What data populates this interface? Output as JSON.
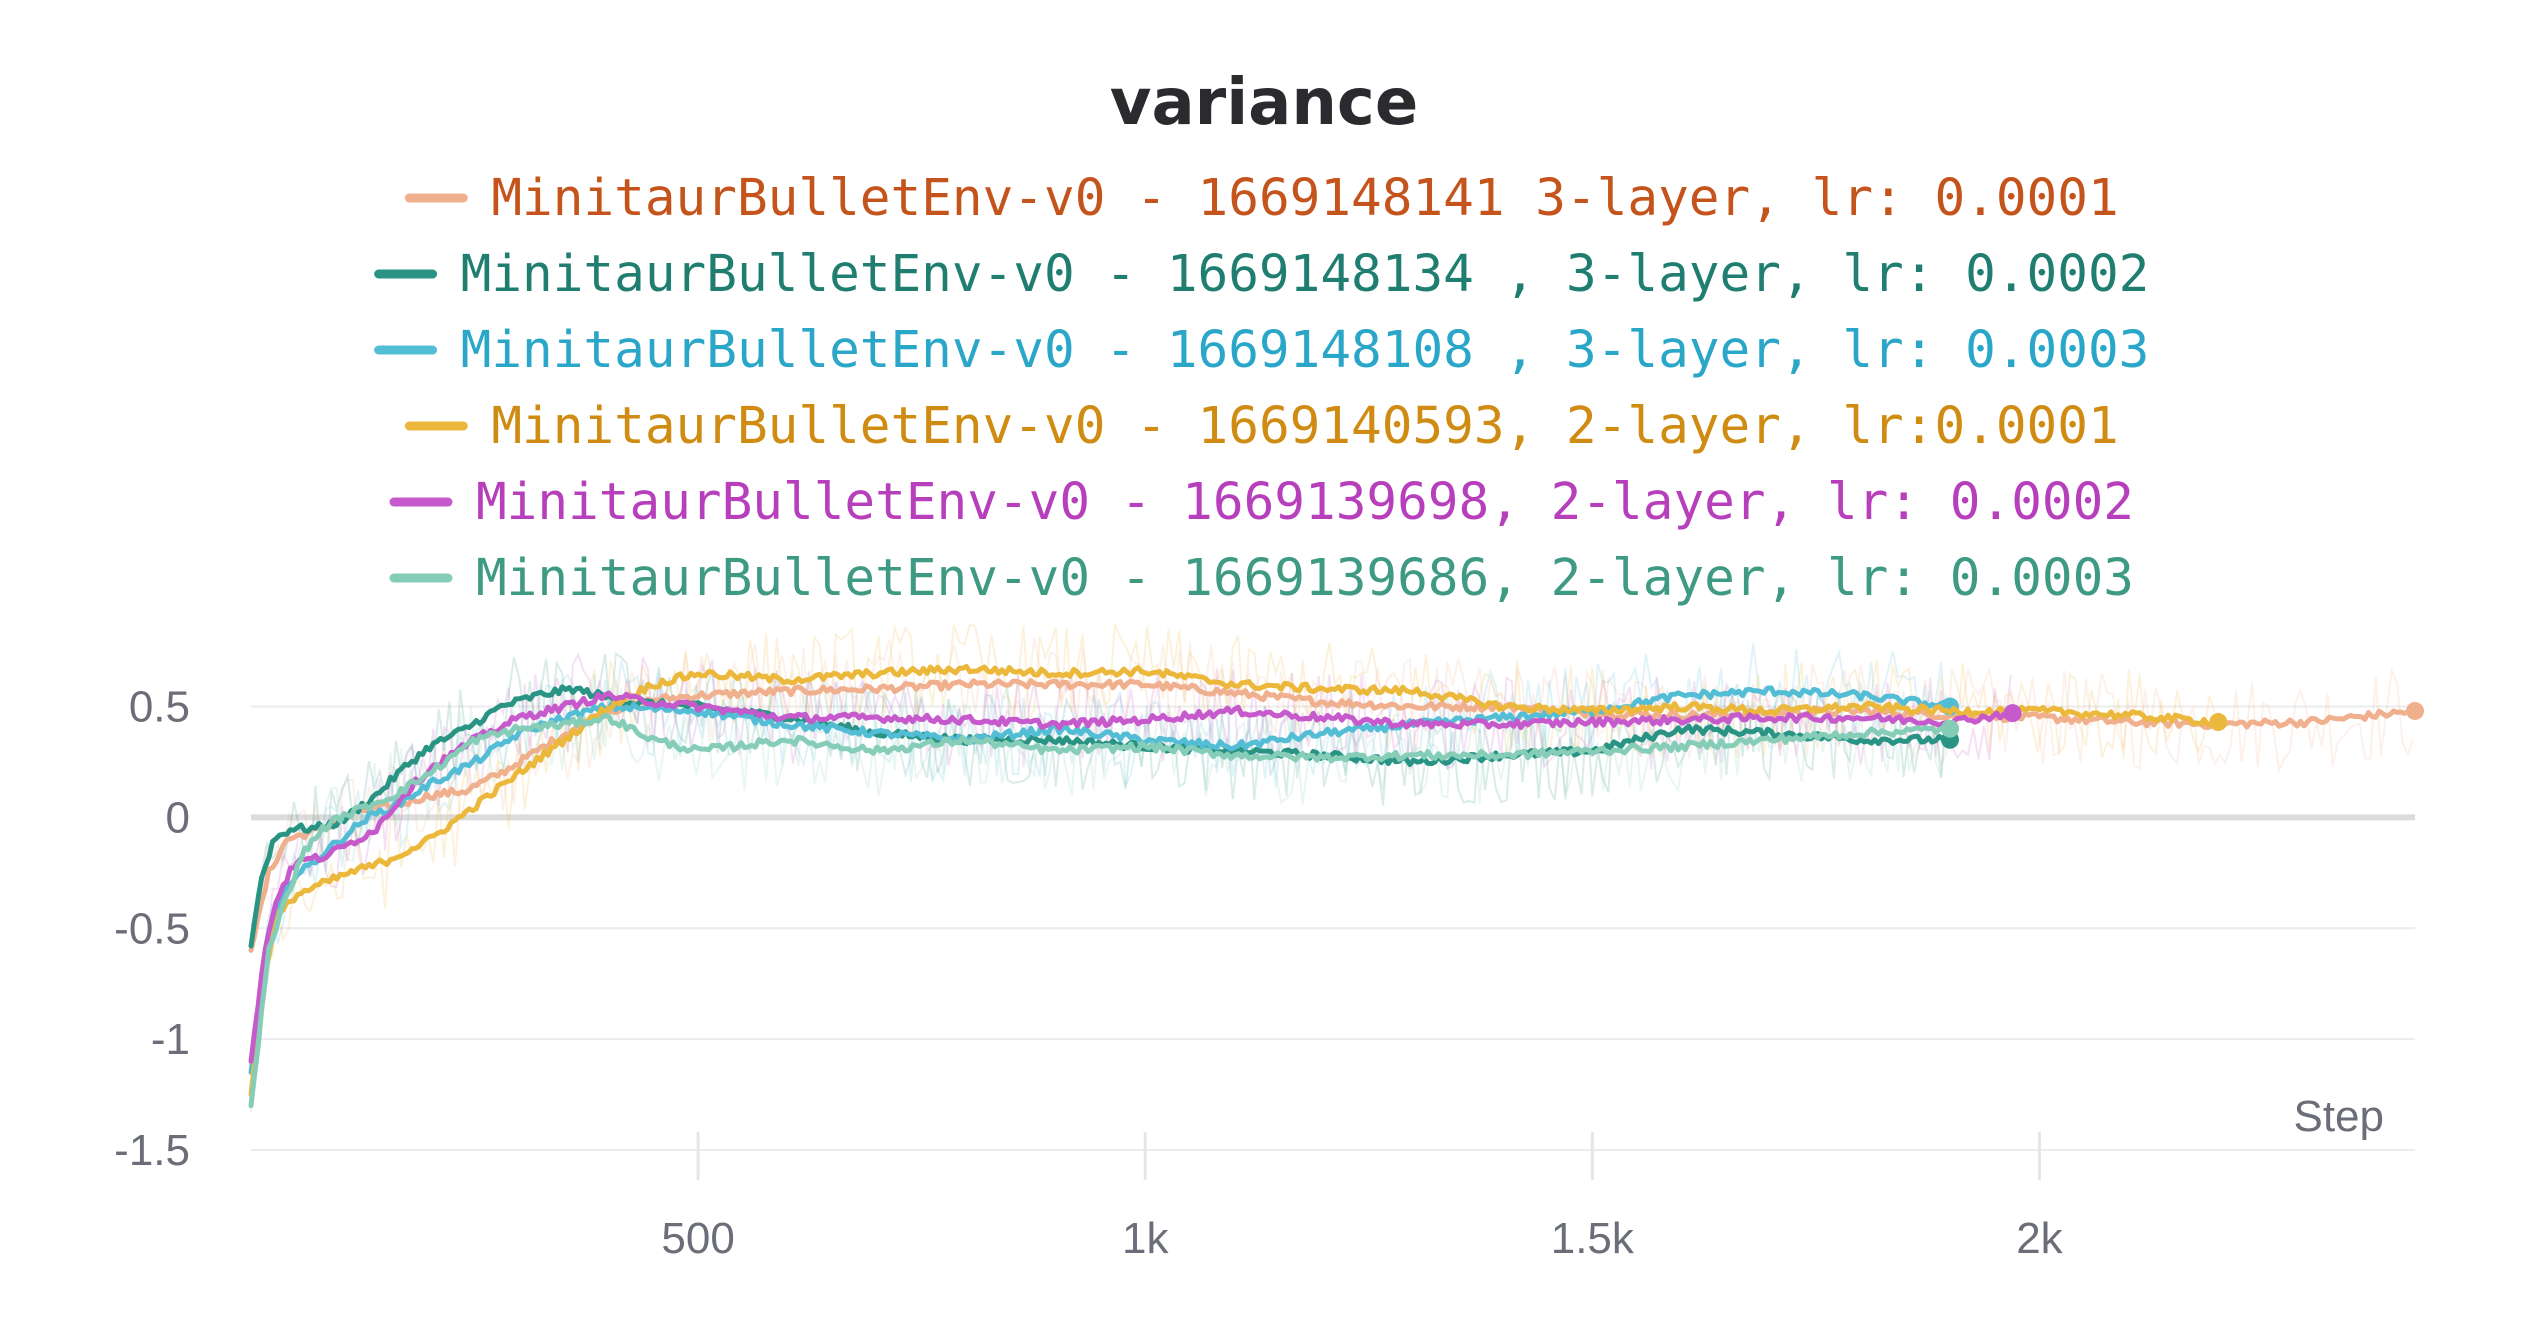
{
  "chart_data": {
    "type": "line",
    "title": "variance",
    "xlabel": "Step",
    "ylabel": "",
    "xlim": [
      0,
      2420
    ],
    "ylim": [
      -1.5,
      0.8
    ],
    "x_ticks": [
      500,
      1000,
      1500,
      2000
    ],
    "x_tick_labels": [
      "500",
      "1k",
      "1.5k",
      "2k"
    ],
    "y_ticks": [
      0.5,
      0,
      -0.5,
      -1,
      -1.5
    ],
    "y_tick_labels": [
      "0.5",
      "0",
      "-0.5",
      "-1",
      "-1.5"
    ],
    "grid": true,
    "legend_position": "top-center",
    "series": [
      {
        "name": "MinitaurBulletEnv-v0 - 1669148141 3-layer, lr: 0.0001",
        "color": "#f0b08e",
        "text_color": "#c4541c",
        "x": [
          0,
          20,
          40,
          80,
          120,
          160,
          200,
          240,
          280,
          320,
          360,
          400,
          450,
          500,
          600,
          700,
          800,
          900,
          1000,
          1100,
          1200,
          1300,
          1400,
          1500,
          1600,
          1700,
          1800,
          1900,
          2000,
          2100,
          2200,
          2300,
          2420
        ],
        "values": [
          -0.6,
          -0.25,
          -0.1,
          -0.05,
          0.03,
          0.05,
          0.1,
          0.12,
          0.2,
          0.3,
          0.4,
          0.48,
          0.53,
          0.55,
          0.57,
          0.58,
          0.6,
          0.6,
          0.6,
          0.56,
          0.52,
          0.5,
          0.5,
          0.47,
          0.46,
          0.47,
          0.48,
          0.46,
          0.45,
          0.43,
          0.42,
          0.43,
          0.48
        ]
      },
      {
        "name": "MinitaurBulletEnv-v0 - 1669148134 , 3-layer, lr: 0.0002",
        "color": "#2a9484",
        "text_color": "#1f7e70",
        "x": [
          0,
          10,
          25,
          45,
          70,
          100,
          140,
          170,
          200,
          240,
          280,
          320,
          360,
          420,
          500,
          600,
          700,
          800,
          900,
          1000,
          1100,
          1200,
          1300,
          1400,
          1500,
          1600,
          1700,
          1800,
          1900
        ],
        "values": [
          -0.58,
          -0.3,
          -0.1,
          -0.05,
          -0.05,
          -0.02,
          0.1,
          0.22,
          0.32,
          0.4,
          0.5,
          0.55,
          0.58,
          0.52,
          0.5,
          0.45,
          0.38,
          0.35,
          0.35,
          0.32,
          0.3,
          0.28,
          0.25,
          0.28,
          0.3,
          0.4,
          0.38,
          0.35,
          0.35
        ]
      },
      {
        "name": "MinitaurBulletEnv-v0 - 1669148108 , 3-layer, lr: 0.0003",
        "color": "#54bdd6",
        "text_color": "#2aa6c8",
        "x": [
          0,
          20,
          40,
          70,
          100,
          130,
          160,
          200,
          250,
          300,
          350,
          400,
          500,
          600,
          700,
          800,
          900,
          1000,
          1100,
          1200,
          1300,
          1400,
          1500,
          1600,
          1700,
          1800,
          1900
        ],
        "values": [
          -1.15,
          -0.55,
          -0.3,
          -0.2,
          -0.1,
          0.0,
          0.05,
          0.15,
          0.25,
          0.38,
          0.45,
          0.5,
          0.48,
          0.42,
          0.38,
          0.35,
          0.4,
          0.35,
          0.32,
          0.38,
          0.42,
          0.45,
          0.48,
          0.55,
          0.57,
          0.55,
          0.5
        ]
      },
      {
        "name": "MinitaurBulletEnv-v0 - 1669140593, 2-layer, lr:0.0001",
        "color": "#ecb83c",
        "text_color": "#d08c12",
        "x": [
          0,
          15,
          30,
          50,
          80,
          110,
          150,
          200,
          250,
          300,
          350,
          400,
          450,
          500,
          600,
          700,
          800,
          900,
          1000,
          1100,
          1200,
          1300,
          1400,
          1500,
          1600,
          1700,
          1800,
          1900,
          2000,
          2100,
          2200
        ],
        "values": [
          -1.25,
          -0.7,
          -0.45,
          -0.35,
          -0.3,
          -0.25,
          -0.2,
          -0.1,
          0.05,
          0.2,
          0.35,
          0.5,
          0.6,
          0.65,
          0.62,
          0.65,
          0.67,
          0.65,
          0.66,
          0.6,
          0.58,
          0.57,
          0.5,
          0.48,
          0.5,
          0.48,
          0.5,
          0.48,
          0.48,
          0.46,
          0.43
        ]
      },
      {
        "name": "MinitaurBulletEnv-v0 - 1669139698, 2-layer, lr: 0.0002",
        "color": "#c659cb",
        "text_color": "#b73fbc",
        "x": [
          0,
          15,
          30,
          50,
          80,
          110,
          140,
          170,
          200,
          250,
          300,
          350,
          400,
          450,
          500,
          600,
          700,
          800,
          900,
          1000,
          1100,
          1200,
          1300,
          1400,
          1500,
          1600,
          1700,
          1800,
          1900,
          1970
        ],
        "values": [
          -1.1,
          -0.6,
          -0.35,
          -0.2,
          -0.18,
          -0.12,
          -0.05,
          0.1,
          0.22,
          0.35,
          0.45,
          0.5,
          0.55,
          0.52,
          0.5,
          0.45,
          0.45,
          0.44,
          0.42,
          0.44,
          0.48,
          0.45,
          0.42,
          0.42,
          0.43,
          0.44,
          0.45,
          0.45,
          0.43,
          0.47
        ]
      },
      {
        "name": "MinitaurBulletEnv-v0 - 1669139686, 2-layer, lr: 0.0003",
        "color": "#86cdb8",
        "text_color": "#3f9a84",
        "x": [
          0,
          20,
          40,
          60,
          80,
          100,
          130,
          160,
          200,
          250,
          300,
          350,
          400,
          450,
          500,
          600,
          700,
          800,
          900,
          1000,
          1100,
          1200,
          1300,
          1400,
          1500,
          1600,
          1700,
          1800,
          1900
        ],
        "values": [
          -1.3,
          -0.6,
          -0.35,
          -0.15,
          -0.05,
          0.0,
          0.05,
          0.1,
          0.2,
          0.35,
          0.4,
          0.42,
          0.45,
          0.35,
          0.3,
          0.35,
          0.3,
          0.35,
          0.3,
          0.32,
          0.28,
          0.27,
          0.28,
          0.28,
          0.3,
          0.32,
          0.35,
          0.38,
          0.4
        ]
      }
    ]
  }
}
